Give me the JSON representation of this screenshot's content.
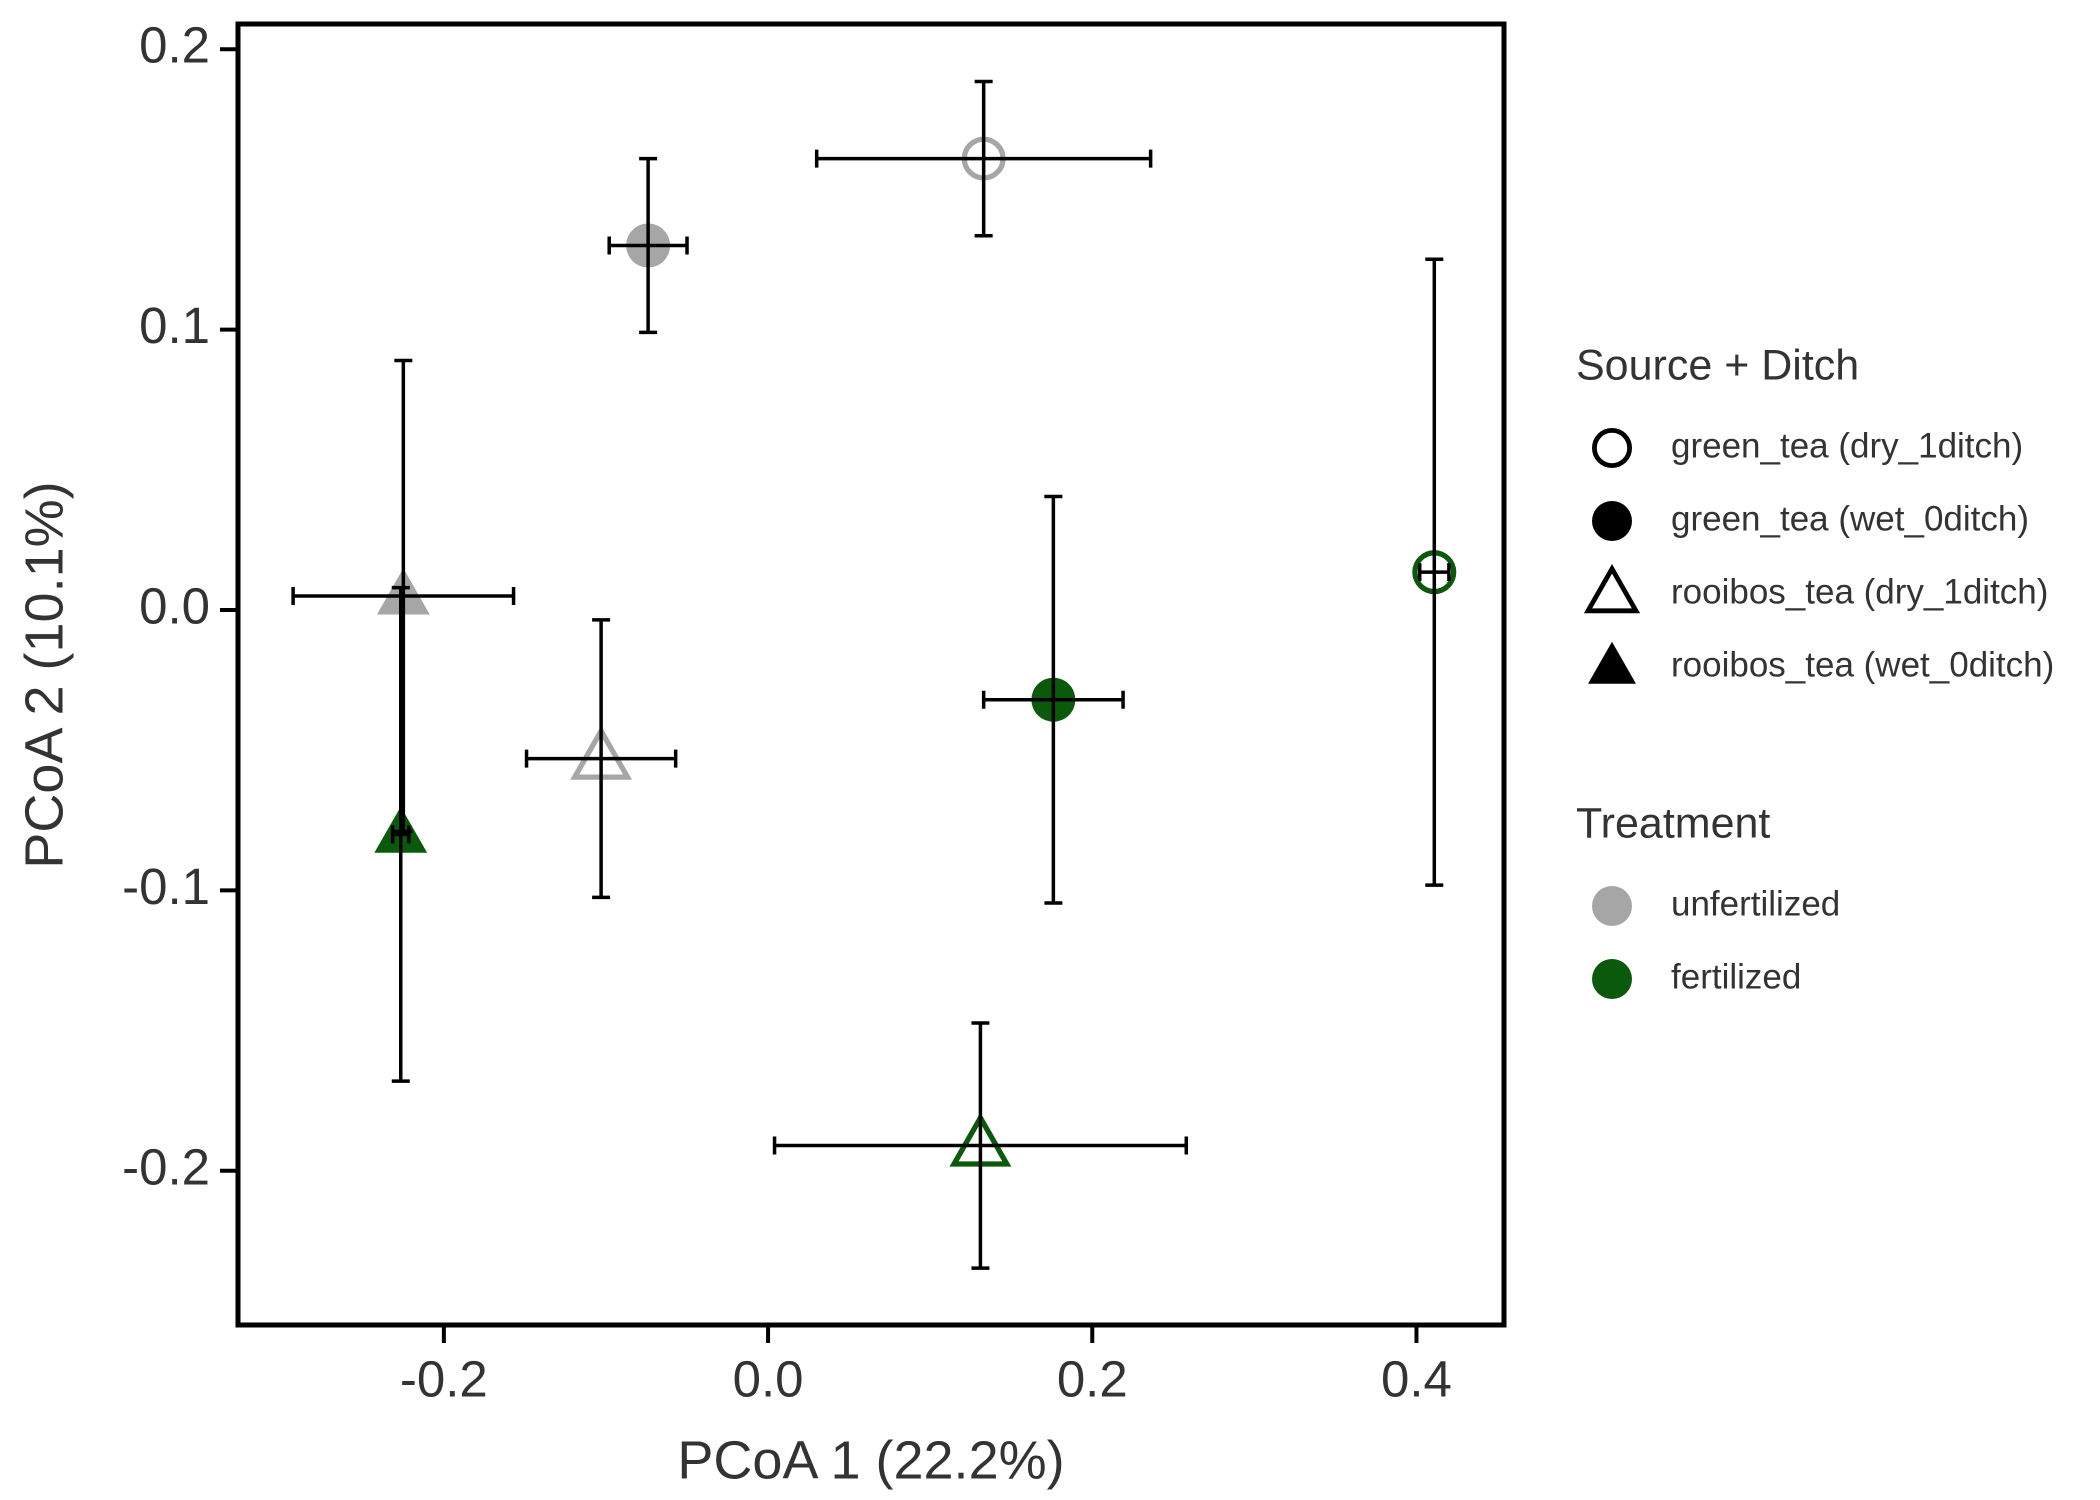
{
  "chart_data": {
    "type": "scatter",
    "x_label": "PCoA 1 (22.2%)",
    "y_label": "PCoA 2 (10.1%)",
    "xlim": [
      -0.327,
      0.454
    ],
    "ylim": [
      -0.255,
      0.209
    ],
    "xticks": [
      -0.2,
      {
        "value": 0,
        "label": "0.0"
      },
      0.2,
      0.4
    ],
    "yticks": [
      0.2,
      0.1,
      {
        "value": 0,
        "label": "0.0"
      },
      -0.1,
      -0.2
    ],
    "points": [
      {
        "x": -0.074,
        "y": 0.13,
        "xerr": 0.024,
        "yerr": 0.031,
        "shape": "circle",
        "filled": true,
        "color": "#a6a6a6"
      },
      {
        "x": 0.133,
        "y": 0.161,
        "xerr": 0.103,
        "yerr": 0.0275,
        "shape": "circle",
        "filled": false,
        "color": "#a6a6a6"
      },
      {
        "x": -0.225,
        "y": 0.005,
        "xerr": 0.068,
        "yerr": 0.084,
        "shape": "triangle",
        "filled": true,
        "color": "#a6a6a6"
      },
      {
        "x": -0.103,
        "y": -0.053,
        "xerr": 0.046,
        "yerr": 0.0495,
        "shape": "triangle",
        "filled": false,
        "color": "#a6a6a6"
      },
      {
        "x": 0.176,
        "y": -0.032,
        "xerr": 0.043,
        "yerr": 0.0725,
        "shape": "circle",
        "filled": true,
        "color": "#0b5a0b"
      },
      {
        "x": 0.411,
        "y": 0.0135,
        "xerr": 0.009,
        "yerr": 0.1116,
        "shape": "circle",
        "filled": false,
        "color": "#0b5a0b"
      },
      {
        "x": 0.131,
        "y": -0.191,
        "xerr": 0.127,
        "yerr": 0.0437,
        "shape": "triangle",
        "filled": false,
        "color": "#0b5a0b"
      },
      {
        "x": -0.2266,
        "y": -0.08,
        "xerr": 0.005,
        "yerr": 0.088,
        "shape": "triangle",
        "filled": true,
        "color": "#0b5a0b"
      }
    ],
    "legends": [
      {
        "title": "Source + Ditch",
        "entries": [
          {
            "label": "green_tea (dry_1ditch)",
            "shape": "circle",
            "filled": false,
            "color": "#000000"
          },
          {
            "label": "green_tea (wet_0ditch)",
            "shape": "circle",
            "filled": true,
            "color": "#000000"
          },
          {
            "label": "rooibos_tea (dry_1ditch)",
            "shape": "triangle",
            "filled": false,
            "color": "#000000"
          },
          {
            "label": "rooibos_tea (wet_0ditch)",
            "shape": "triangle",
            "filled": true,
            "color": "#000000"
          }
        ]
      },
      {
        "title": "Treatment",
        "entries": [
          {
            "label": "unfertilized",
            "shape": "circle",
            "filled": true,
            "color": "#a6a6a6"
          },
          {
            "label": "fertilized",
            "shape": "circle",
            "filled": true,
            "color": "#0b5a0b"
          }
        ]
      }
    ]
  }
}
